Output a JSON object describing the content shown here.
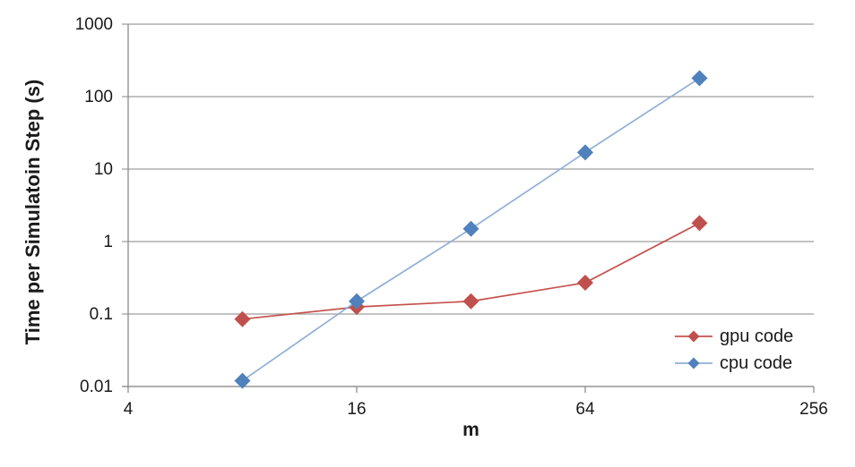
{
  "chart_data": {
    "type": "line",
    "title": "",
    "xlabel": "m",
    "ylabel": "Time per Simulatoin Step (s)",
    "x_axis": {
      "scale": "log",
      "lim": [
        4,
        256
      ],
      "tick_values": [
        4,
        16,
        64,
        256
      ],
      "tick_labels": [
        "4",
        "16",
        "64",
        "256"
      ]
    },
    "y_axis": {
      "scale": "log",
      "lim": [
        0.01,
        1000
      ],
      "tick_values": [
        0.01,
        0.1,
        1,
        10,
        100,
        1000
      ],
      "tick_labels": [
        "0.01",
        "0.1",
        "1",
        "10",
        "100",
        "1000"
      ]
    },
    "grid": "horizontal-only",
    "legend_position": "inside-bottom-right",
    "x": [
      8,
      16,
      32,
      64,
      128
    ],
    "series": [
      {
        "name": "gpu code",
        "values": [
          0.085,
          0.125,
          0.15,
          0.27,
          1.8
        ],
        "marker": "diamond",
        "marker_color": "#C0504D",
        "line_color": "#C5524E"
      },
      {
        "name": "cpu code",
        "values": [
          0.012,
          0.15,
          1.5,
          17,
          180
        ],
        "marker": "diamond",
        "marker_color": "#4F81BD",
        "line_color": "#8FAFD8"
      }
    ],
    "axis_color": "#8C8C8C",
    "grid_color": "#9E9E9E",
    "text_color": "#1a1a1a"
  }
}
